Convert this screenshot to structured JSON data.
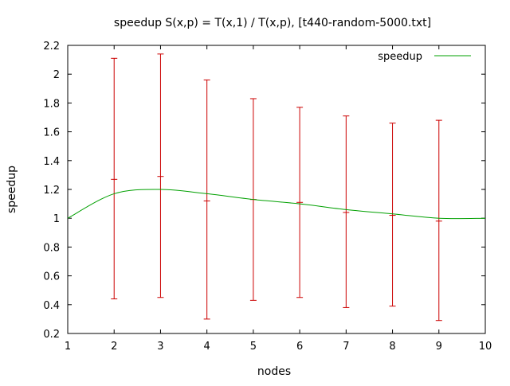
{
  "chart_data": {
    "type": "line",
    "title": "speedup S(x,p) = T(x,1) / T(x,p), [t440-random-5000.txt]",
    "xlabel": "nodes",
    "ylabel": "speedup",
    "xlim": [
      1,
      10
    ],
    "ylim": [
      0.2,
      2.2
    ],
    "x_ticks": [
      "1",
      "2",
      "3",
      "4",
      "5",
      "6",
      "7",
      "8",
      "9",
      "10"
    ],
    "y_ticks": [
      "0.2",
      "0.4",
      "0.6",
      "0.8",
      "1",
      "1.2",
      "1.4",
      "1.6",
      "1.8",
      "2",
      "2.2"
    ],
    "grid": false,
    "legend_position": "top-right",
    "series": [
      {
        "name": "speedup",
        "color": "#00a000",
        "curve": "smooth",
        "x": [
          1,
          2,
          3,
          4,
          5,
          6,
          7,
          8,
          9,
          10
        ],
        "y": [
          1.0,
          1.17,
          1.2,
          1.17,
          1.13,
          1.1,
          1.06,
          1.03,
          1.0,
          1.0
        ]
      }
    ],
    "error_bars": {
      "color": "#cc0000",
      "x": [
        2,
        3,
        4,
        5,
        6,
        7,
        8,
        9
      ],
      "low": [
        0.44,
        0.45,
        0.3,
        0.43,
        0.45,
        0.38,
        0.39,
        0.29
      ],
      "high": [
        2.11,
        2.14,
        1.96,
        1.83,
        1.77,
        1.71,
        1.66,
        1.68
      ],
      "mark": [
        1.27,
        1.29,
        1.12,
        1.13,
        1.11,
        1.04,
        1.02,
        0.98
      ]
    }
  }
}
